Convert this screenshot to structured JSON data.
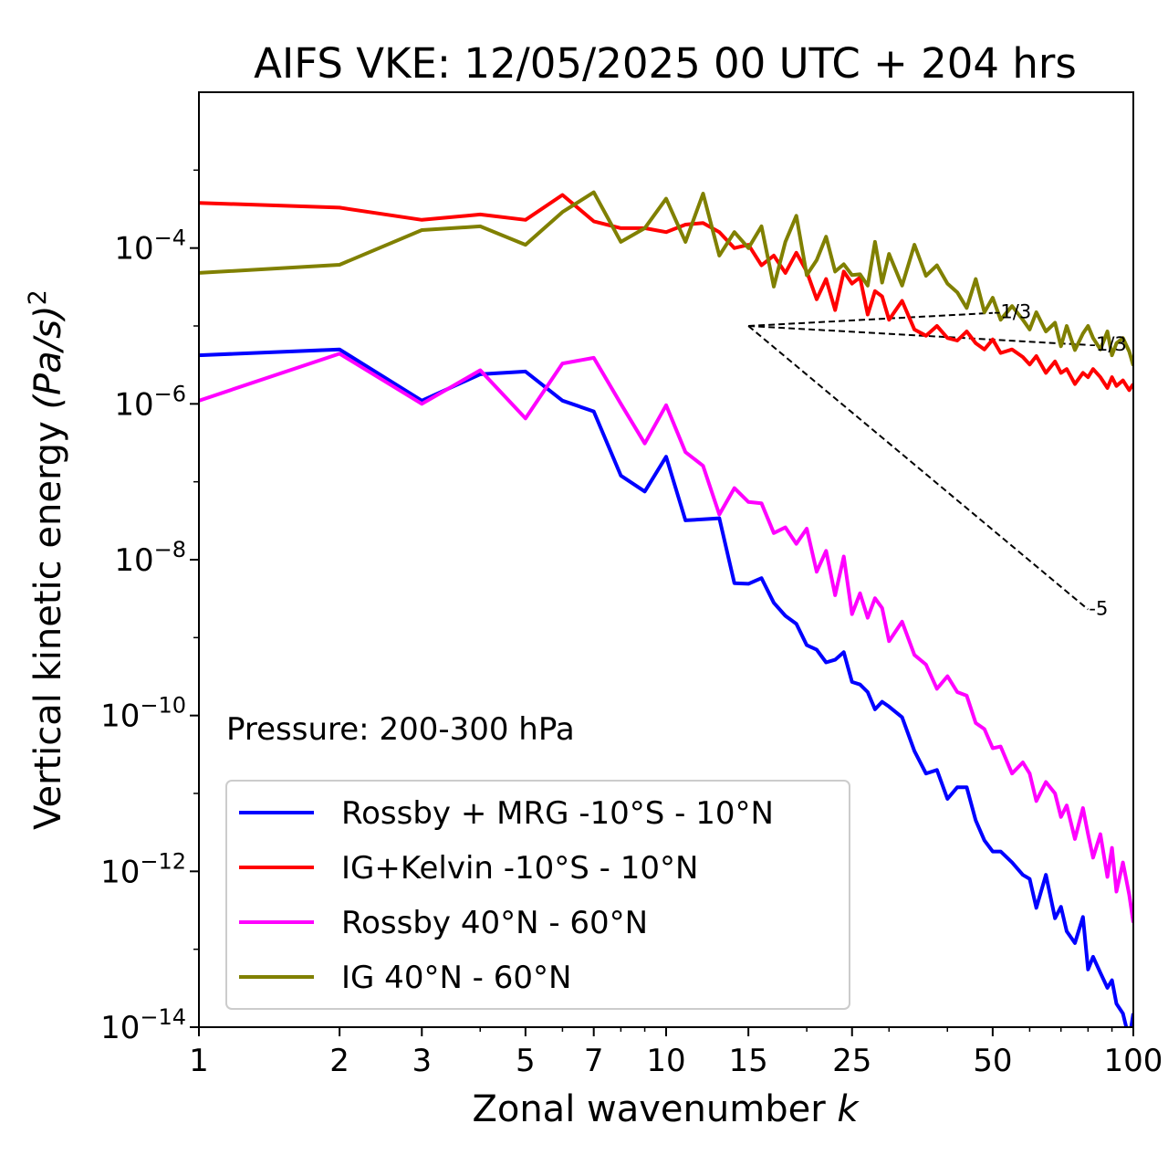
{
  "chart_data": {
    "type": "line",
    "title": "AIFS VKE: 12/05/2025 00 UTC + 204 hrs",
    "xlabel": "Zonal wavenumber",
    "xlabel_var": "k",
    "ylabel": "Vertical kinetic energy",
    "ylabel_unit": "(Pa/s)",
    "ylabel_exp": "2",
    "xscale": "log",
    "yscale": "log",
    "xlim": [
      1,
      100
    ],
    "ylim": [
      1e-14,
      0.01
    ],
    "xticks": [
      1,
      2,
      3,
      5,
      7,
      10,
      15,
      25,
      50,
      100
    ],
    "xtick_labels": [
      "1",
      "2",
      "3",
      "5",
      "7",
      "10",
      "15",
      "25",
      "50",
      "100"
    ],
    "yticks": [
      {
        "value": 0.0001,
        "base": "10",
        "exp": "−4"
      },
      {
        "value": 1e-06,
        "base": "10",
        "exp": "−6"
      },
      {
        "value": 1e-08,
        "base": "10",
        "exp": "−8"
      },
      {
        "value": 1e-10,
        "base": "10",
        "exp": "−10"
      },
      {
        "value": 1e-12,
        "base": "10",
        "exp": "−12"
      },
      {
        "value": 1e-14,
        "base": "10",
        "exp": "−14"
      }
    ],
    "grid": false,
    "legend_position": "lower-left",
    "annotation": "Pressure: 200-300 hPa",
    "reference_lines": [
      {
        "label": "-1/3",
        "x": [
          15,
          50
        ],
        "y": [
          1e-05,
          1.47e-05
        ]
      },
      {
        "label": "-1/3",
        "x": [
          15,
          80
        ],
        "y": [
          1e-05,
          5.7e-06
        ]
      },
      {
        "label": "-5",
        "x": [
          15,
          80
        ],
        "y": [
          1e-05,
          2.3e-09
        ]
      }
    ],
    "series": [
      {
        "name": "Rossby + MRG -10°S - 10°N",
        "color": "#0000ff",
        "x": [
          1,
          2,
          3,
          4,
          5,
          6,
          7,
          8,
          9,
          10,
          11,
          12,
          13,
          14,
          15,
          16,
          17,
          18,
          19,
          20,
          21,
          22,
          23,
          24,
          25,
          26,
          27,
          28,
          29,
          30,
          32,
          34,
          36,
          38,
          40,
          42,
          44,
          46,
          48,
          50,
          52,
          55,
          58,
          60,
          62,
          65,
          68,
          70,
          72,
          75,
          78,
          80,
          82,
          85,
          88,
          90,
          92,
          95,
          98,
          100
        ],
        "y": [
          4.2e-06,
          5e-06,
          1.1e-06,
          2.4e-06,
          2.6e-06,
          1.1e-06,
          8e-07,
          1.2e-07,
          7.5e-08,
          2.1e-07,
          3.2e-08,
          3.3e-08,
          3.4e-08,
          5e-09,
          4.9e-09,
          5.8e-09,
          2.8e-09,
          1.9e-09,
          1.5e-09,
          8e-10,
          7e-10,
          4.8e-10,
          5.2e-10,
          6.5e-10,
          2.7e-10,
          2.5e-10,
          2e-10,
          1.2e-10,
          1.5e-10,
          1.3e-10,
          9.5e-11,
          3.5e-11,
          1.8e-11,
          2e-11,
          8.5e-12,
          1.2e-11,
          1.2e-11,
          4.5e-12,
          2.5e-12,
          1.8e-12,
          1.8e-12,
          1.3e-12,
          9e-13,
          8e-13,
          3.4e-13,
          9e-13,
          2.5e-13,
          3.5e-13,
          1.7e-13,
          1.2e-13,
          2.6e-13,
          5.5e-14,
          8e-14,
          5e-14,
          3.2e-14,
          4e-14,
          2e-14,
          1.5e-14,
          7e-15,
          1.5e-14
        ]
      },
      {
        "name": "IG+Kelvin -10°S - 10°N",
        "color": "#ff0000",
        "x": [
          1,
          2,
          3,
          4,
          5,
          6,
          7,
          8,
          9,
          10,
          11,
          12,
          13,
          14,
          15,
          16,
          17,
          18,
          19,
          20,
          21,
          22,
          23,
          24,
          25,
          26,
          27,
          28,
          29,
          30,
          32,
          34,
          36,
          38,
          40,
          42,
          44,
          46,
          48,
          50,
          52,
          55,
          58,
          60,
          62,
          65,
          68,
          70,
          72,
          75,
          78,
          80,
          82,
          85,
          88,
          90,
          92,
          95,
          98,
          100
        ],
        "y": [
          0.00038,
          0.00033,
          0.00023,
          0.00027,
          0.00023,
          0.00048,
          0.00022,
          0.00018,
          0.00018,
          0.00016,
          0.0002,
          0.00021,
          0.00016,
          0.0001,
          0.00011,
          6e-05,
          8e-05,
          4.8e-05,
          8.7e-05,
          5e-05,
          2.2e-05,
          4e-05,
          1.6e-05,
          5e-05,
          3.5e-05,
          4.2e-05,
          1.4e-05,
          2.8e-05,
          2.4e-05,
          1.2e-05,
          2.1e-05,
          9e-06,
          7.5e-06,
          1e-05,
          7e-06,
          6.5e-06,
          8.5e-06,
          6e-06,
          5e-06,
          6.7e-06,
          4.5e-06,
          5e-06,
          4e-06,
          3.2e-06,
          4.1e-06,
          2.5e-06,
          3.5e-06,
          2.5e-06,
          2.8e-06,
          1.8e-06,
          2.5e-06,
          2.2e-06,
          2.8e-06,
          2.2e-06,
          1.6e-06,
          2.2e-06,
          1.7e-06,
          2e-06,
          1.5e-06,
          1.8e-06
        ]
      },
      {
        "name": "Rossby 40°N - 60°N",
        "color": "#ff00ff",
        "x": [
          1,
          2,
          3,
          4,
          5,
          6,
          7,
          8,
          9,
          10,
          11,
          12,
          13,
          14,
          15,
          16,
          17,
          18,
          19,
          20,
          21,
          22,
          23,
          24,
          25,
          26,
          27,
          28,
          29,
          30,
          32,
          34,
          36,
          38,
          40,
          42,
          44,
          46,
          48,
          50,
          52,
          55,
          58,
          60,
          62,
          65,
          68,
          70,
          72,
          75,
          78,
          80,
          82,
          85,
          88,
          90,
          92,
          95,
          98,
          100
        ],
        "y": [
          1.1e-06,
          4.4e-06,
          1e-06,
          2.7e-06,
          6.5e-07,
          3.3e-06,
          3.9e-06,
          1e-06,
          3.1e-07,
          9.6e-07,
          2.4e-07,
          1.6e-07,
          3.8e-08,
          8.3e-08,
          5.5e-08,
          5.3e-08,
          2.2e-08,
          2.6e-08,
          1.6e-08,
          2.5e-08,
          7e-09,
          1.3e-08,
          3.5e-09,
          1.1e-08,
          2e-09,
          3.7e-09,
          1.8e-09,
          3.2e-09,
          2.4e-09,
          9e-10,
          1.6e-09,
          6e-10,
          4.5e-10,
          2.2e-10,
          3.2e-10,
          2e-10,
          1.8e-10,
          8e-11,
          6.7e-11,
          3.8e-11,
          4e-11,
          1.8e-11,
          2.5e-11,
          1.8e-11,
          8e-12,
          1.4e-11,
          1e-11,
          5e-12,
          7e-12,
          2.6e-12,
          6.5e-12,
          3e-12,
          1.5e-12,
          3e-12,
          8.5e-13,
          2e-12,
          5.5e-13,
          1.3e-12,
          5e-13,
          2.2e-13
        ]
      },
      {
        "name": "IG 40°N - 60°N",
        "color": "#808000",
        "x": [
          1,
          2,
          3,
          4,
          5,
          6,
          7,
          8,
          9,
          10,
          11,
          12,
          13,
          14,
          15,
          16,
          17,
          18,
          19,
          20,
          21,
          22,
          23,
          24,
          25,
          26,
          27,
          28,
          29,
          30,
          32,
          34,
          36,
          38,
          40,
          42,
          44,
          46,
          48,
          50,
          52,
          55,
          58,
          60,
          62,
          65,
          68,
          70,
          72,
          75,
          78,
          80,
          82,
          85,
          88,
          90,
          92,
          95,
          98,
          100
        ],
        "y": [
          4.8e-05,
          6.1e-05,
          0.00017,
          0.00019,
          0.00011,
          0.00029,
          0.00052,
          0.00012,
          0.00018,
          0.00043,
          0.00012,
          0.0005,
          8e-05,
          0.00016,
          0.0001,
          0.00019,
          3.2e-05,
          0.00012,
          0.00026,
          4.5e-05,
          7e-05,
          0.00014,
          5e-05,
          6.2e-05,
          4.5e-05,
          4.6e-05,
          3.3e-05,
          0.00012,
          3.6e-05,
          8.4e-05,
          3.3e-05,
          0.00011,
          4.4e-05,
          6e-05,
          3.5e-05,
          2.7e-05,
          1.7e-05,
          4e-05,
          1.5e-05,
          2.3e-05,
          1.2e-05,
          1.8e-05,
          1.2e-05,
          9e-06,
          1.5e-05,
          8.5e-06,
          1.1e-05,
          5.5e-06,
          1e-05,
          4.9e-06,
          8e-06,
          1e-05,
          7e-06,
          5e-06,
          8.5e-06,
          4.2e-06,
          6e-06,
          7e-06,
          4.7e-06,
          3.1e-06
        ]
      }
    ]
  }
}
